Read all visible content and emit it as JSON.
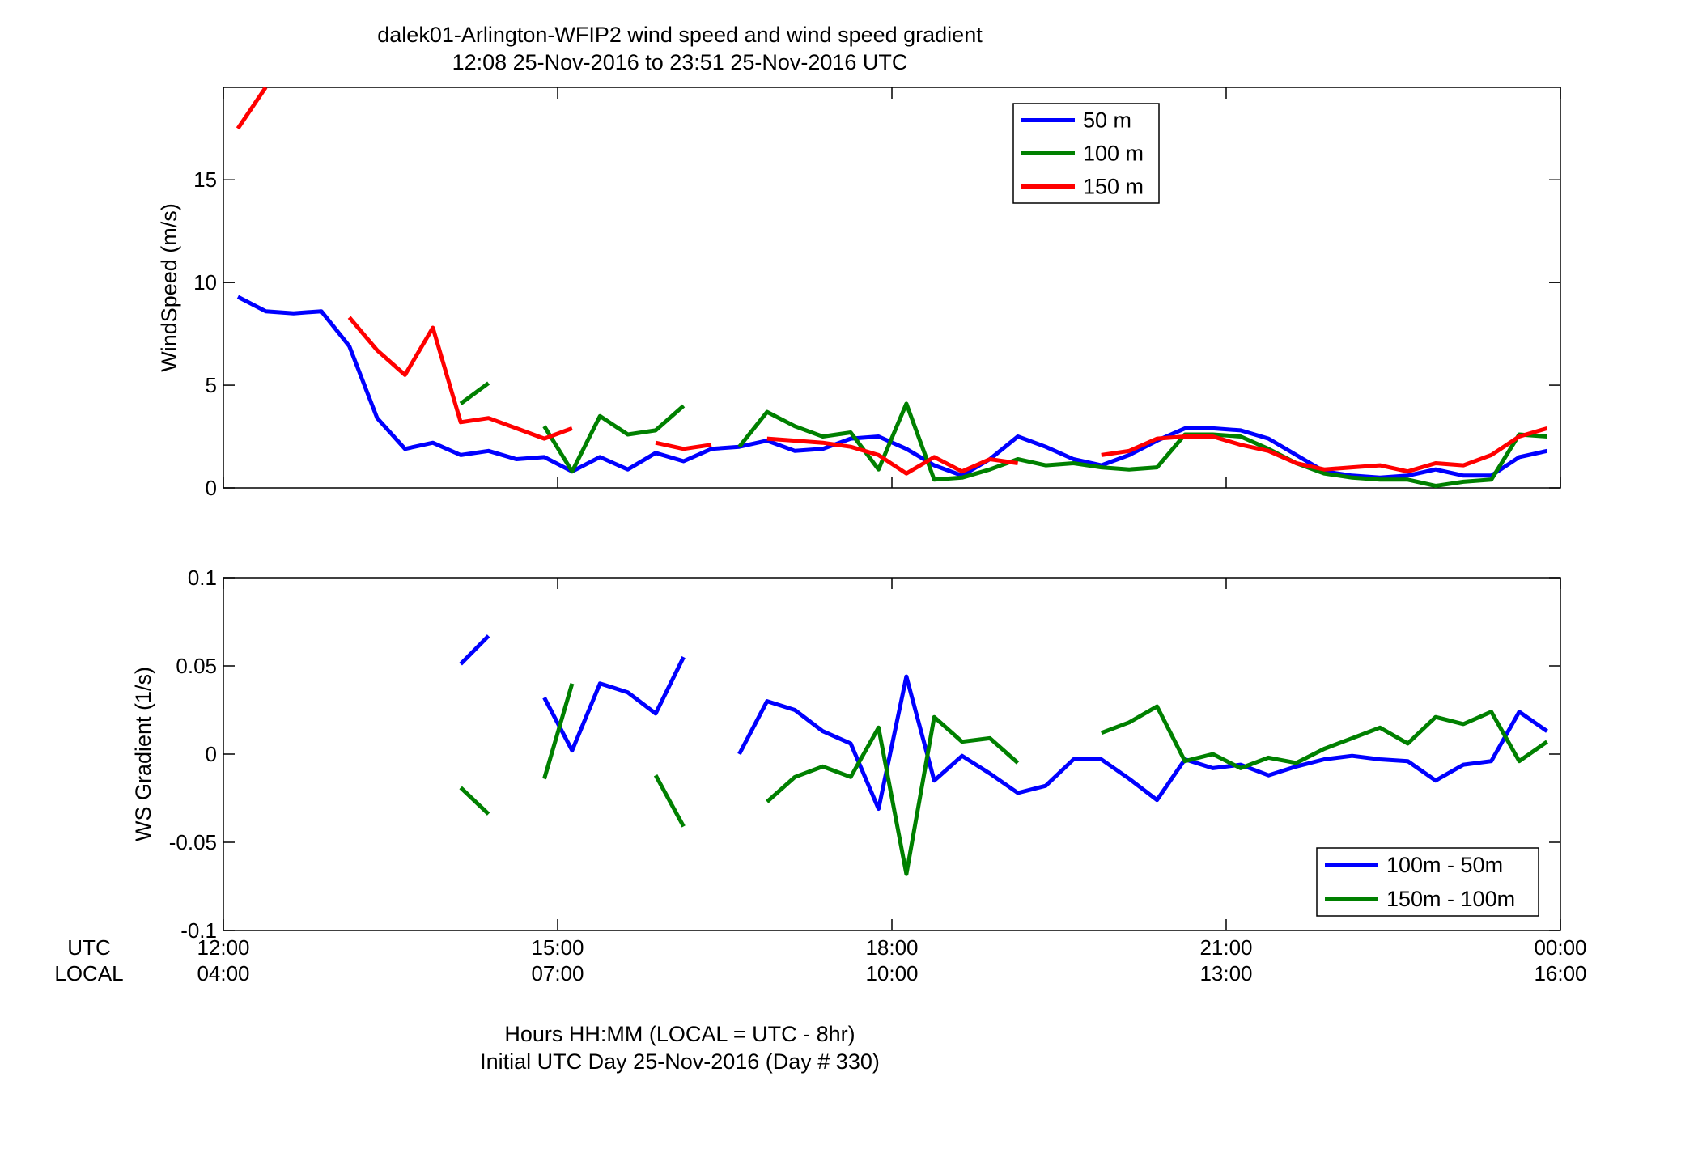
{
  "figure": {
    "title_line1": "dalek01-Arlington-WFIP2  wind speed and wind speed gradient",
    "title_line2": "12:08 25-Nov-2016 to 23:51 25-Nov-2016  UTC",
    "row_label_utc": "UTC",
    "row_label_local": "LOCAL",
    "xlabel_line1": "Hours HH:MM  (LOCAL = UTC - 8hr)",
    "xlabel_line2": "Initial UTC Day 25-Nov-2016 (Day # 330)",
    "x_ticks": [
      {
        "utc": "12:00",
        "local": "04:00"
      },
      {
        "utc": "15:00",
        "local": "07:00"
      },
      {
        "utc": "18:00",
        "local": "10:00"
      },
      {
        "utc": "21:00",
        "local": "13:00"
      },
      {
        "utc": "00:00",
        "local": "16:00"
      }
    ]
  },
  "chart_data": [
    {
      "type": "line",
      "ylabel": "WindSpeed (m/s)",
      "xlim_hours_utc": [
        12,
        24
      ],
      "ylim": [
        0,
        19.5
      ],
      "yticks": [
        0,
        5,
        10,
        15
      ],
      "legend_position": "top-center-right",
      "grid": false,
      "x_hours_utc": [
        12.13,
        12.38,
        12.63,
        12.88,
        13.13,
        13.38,
        13.63,
        13.88,
        14.13,
        14.38,
        14.63,
        14.88,
        15.13,
        15.38,
        15.63,
        15.88,
        16.13,
        16.38,
        16.63,
        16.88,
        17.13,
        17.38,
        17.63,
        17.88,
        18.13,
        18.38,
        18.63,
        18.88,
        19.13,
        19.38,
        19.63,
        19.88,
        20.13,
        20.38,
        20.63,
        20.88,
        21.13,
        21.38,
        21.63,
        21.88,
        22.13,
        22.38,
        22.63,
        22.88,
        23.13,
        23.38,
        23.63,
        23.88
      ],
      "series": [
        {
          "name": "50 m",
          "color": "#0000ff",
          "values": [
            9.3,
            8.6,
            8.5,
            8.6,
            6.9,
            3.4,
            1.9,
            2.2,
            1.6,
            1.8,
            1.4,
            1.5,
            0.8,
            1.5,
            0.9,
            1.7,
            1.3,
            1.9,
            2.0,
            2.3,
            1.8,
            1.9,
            2.4,
            2.5,
            1.9,
            1.1,
            0.6,
            1.4,
            2.5,
            2.0,
            1.4,
            1.1,
            1.6,
            2.3,
            2.9,
            2.9,
            2.8,
            2.4,
            1.6,
            0.8,
            0.6,
            0.5,
            0.6,
            0.9,
            0.6,
            0.6,
            1.5,
            1.8
          ]
        },
        {
          "name": "100 m",
          "color": "#008000",
          "values": [
            null,
            null,
            null,
            null,
            null,
            null,
            null,
            null,
            4.1,
            5.1,
            null,
            3.0,
            0.8,
            3.5,
            2.6,
            2.8,
            4.0,
            null,
            2.0,
            3.7,
            3.0,
            2.5,
            2.7,
            0.9,
            4.1,
            0.4,
            0.5,
            0.9,
            1.4,
            1.1,
            1.2,
            1.0,
            0.9,
            1.0,
            2.6,
            2.6,
            2.5,
            1.9,
            1.2,
            0.7,
            0.5,
            0.4,
            0.4,
            0.1,
            0.3,
            0.4,
            2.6,
            2.5
          ]
        },
        {
          "name": "150 m",
          "color": "#ff0000",
          "values": [
            17.5,
            19.5,
            null,
            null,
            8.3,
            6.7,
            5.5,
            7.8,
            3.2,
            3.4,
            2.9,
            2.4,
            2.9,
            null,
            null,
            2.2,
            1.9,
            2.1,
            null,
            2.4,
            2.3,
            2.2,
            2.0,
            1.6,
            0.7,
            1.5,
            0.8,
            1.4,
            1.2,
            null,
            null,
            1.6,
            1.8,
            2.4,
            2.5,
            2.5,
            2.1,
            1.8,
            1.2,
            0.9,
            1.0,
            1.1,
            0.8,
            1.2,
            1.1,
            1.6,
            2.5,
            2.9
          ]
        }
      ]
    },
    {
      "type": "line",
      "ylabel": "WS Gradient (1/s)",
      "xlim_hours_utc": [
        12,
        24
      ],
      "ylim": [
        -0.1,
        0.1
      ],
      "yticks": [
        -0.1,
        -0.05,
        0,
        0.05,
        0.1
      ],
      "ytick_labels": [
        "-0.1",
        "-0.05",
        "0",
        "0.05",
        "0.1"
      ],
      "legend_position": "bottom-right",
      "grid": false,
      "x_hours_utc": [
        12.13,
        12.38,
        12.63,
        12.88,
        13.13,
        13.38,
        13.63,
        13.88,
        14.13,
        14.38,
        14.63,
        14.88,
        15.13,
        15.38,
        15.63,
        15.88,
        16.13,
        16.38,
        16.63,
        16.88,
        17.13,
        17.38,
        17.63,
        17.88,
        18.13,
        18.38,
        18.63,
        18.88,
        19.13,
        19.38,
        19.63,
        19.88,
        20.13,
        20.38,
        20.63,
        20.88,
        21.13,
        21.38,
        21.63,
        21.88,
        22.13,
        22.38,
        22.63,
        22.88,
        23.13,
        23.38,
        23.63,
        23.88
      ],
      "series": [
        {
          "name": "100m - 50m",
          "color": "#0000ff",
          "values": [
            null,
            null,
            null,
            null,
            null,
            null,
            null,
            null,
            0.051,
            0.067,
            null,
            0.032,
            0.002,
            0.04,
            0.035,
            0.023,
            0.055,
            null,
            0.0,
            0.03,
            0.025,
            0.013,
            0.006,
            -0.031,
            0.044,
            -0.015,
            -0.001,
            -0.011,
            -0.022,
            -0.018,
            -0.003,
            -0.003,
            -0.014,
            -0.026,
            -0.003,
            -0.008,
            -0.006,
            -0.012,
            -0.007,
            -0.003,
            -0.001,
            -0.003,
            -0.004,
            -0.015,
            -0.006,
            -0.004,
            0.024,
            0.013
          ]
        },
        {
          "name": "150m - 100m",
          "color": "#008000",
          "values": [
            null,
            null,
            null,
            null,
            null,
            null,
            null,
            null,
            -0.019,
            -0.034,
            null,
            -0.014,
            0.04,
            null,
            null,
            -0.012,
            -0.041,
            null,
            null,
            -0.027,
            -0.013,
            -0.007,
            -0.013,
            0.015,
            -0.068,
            0.021,
            0.007,
            0.009,
            -0.005,
            null,
            null,
            0.012,
            0.018,
            0.027,
            -0.004,
            0.0,
            -0.008,
            -0.002,
            -0.005,
            0.003,
            0.009,
            0.015,
            0.006,
            0.021,
            0.017,
            0.024,
            -0.004,
            0.007
          ]
        }
      ]
    }
  ]
}
